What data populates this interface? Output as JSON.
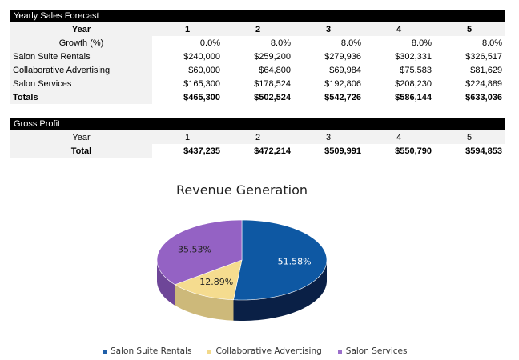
{
  "sales": {
    "title": "Yearly Sales Forecast",
    "year_label": "Year",
    "years": [
      "1",
      "2",
      "3",
      "4",
      "5"
    ],
    "rows": [
      {
        "label": "Growth (%)",
        "values": [
          "0.0%",
          "8.0%",
          "8.0%",
          "8.0%",
          "8.0%"
        ]
      },
      {
        "label": "Salon Suite Rentals",
        "values": [
          "$240,000",
          "$259,200",
          "$279,936",
          "$302,331",
          "$326,517"
        ]
      },
      {
        "label": "Collaborative Advertising",
        "values": [
          "$60,000",
          "$64,800",
          "$69,984",
          "$75,583",
          "$81,629"
        ]
      },
      {
        "label": "Salon Services",
        "values": [
          "$165,300",
          "$178,524",
          "$192,806",
          "$208,230",
          "$224,889"
        ]
      }
    ],
    "totals": {
      "label": "Totals",
      "values": [
        "$465,300",
        "$502,524",
        "$542,726",
        "$586,144",
        "$633,036"
      ]
    }
  },
  "gross": {
    "title": "Gross Profit",
    "year_label": "Year",
    "years": [
      "1",
      "2",
      "3",
      "4",
      "5"
    ],
    "total": {
      "label": "Total",
      "values": [
        "$437,235",
        "$472,214",
        "$509,991",
        "$550,790",
        "$594,853"
      ]
    }
  },
  "chart_data": {
    "type": "pie",
    "title": "Revenue Generation",
    "categories": [
      "Salon Suite Rentals",
      "Collaborative Advertising",
      "Salon Services"
    ],
    "values": [
      51.58,
      12.89,
      35.53
    ],
    "data_labels": [
      "51.58%",
      "12.89%",
      "35.53%"
    ],
    "colors": [
      "#0b4f95",
      "#f2d98a",
      "#8e5cc0"
    ],
    "style": "3d",
    "legend": "bottom"
  }
}
